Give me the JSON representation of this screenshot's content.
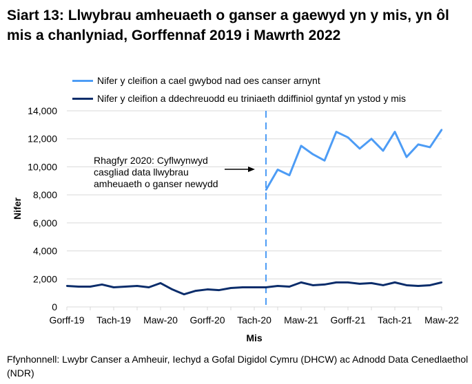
{
  "chart_data": {
    "type": "line",
    "title": "Siart 13: Llwybrau amheuaeth o ganser a gaewyd yn y mis, yn ôl mis a chanlyniad, Gorffennaf 2019 i Mawrth 2022",
    "xlabel": "Mis",
    "ylabel": "Nifer",
    "ylim": [
      0,
      14000
    ],
    "yticks": [
      "0",
      "2,000",
      "4,000",
      "6,000",
      "8,000",
      "10,000",
      "12,000",
      "14,000"
    ],
    "xtick_labels": [
      "Gorff-19",
      "Tach-19",
      "Maw-20",
      "Gorff-20",
      "Tach-20",
      "Maw-21",
      "Gorff-21",
      "Tach-21",
      "Maw-22"
    ],
    "n_months": 33,
    "legend_position": "top",
    "series": [
      {
        "name": "Nifer y cleifion a cael gwybod nad oes canser arnynt",
        "color": "#4d9cf5",
        "start_index": 17,
        "values": [
          8350,
          9800,
          9400,
          11500,
          10900,
          10450,
          12500,
          12100,
          11300,
          12000,
          11150,
          12500,
          10700,
          11600,
          11400,
          12650
        ]
      },
      {
        "name": "Nifer y cleifion a ddechreuodd eu triniaeth ddiffiniol gyntaf yn ystod y mis",
        "color": "#0b2d6b",
        "start_index": 0,
        "values": [
          1500,
          1450,
          1450,
          1600,
          1400,
          1450,
          1500,
          1400,
          1700,
          1250,
          900,
          1150,
          1250,
          1200,
          1350,
          1400,
          1400,
          1400,
          1500,
          1450,
          1750,
          1550,
          1600,
          1750,
          1750,
          1650,
          1700,
          1550,
          1750,
          1550,
          1500,
          1550,
          1750
        ]
      }
    ],
    "annotation": {
      "text_lines": [
        "Rhagfyr 2020: Cyflwynwyd",
        "casgliad data llwybrau",
        "amheuaeth o ganser newydd"
      ],
      "at_index": 17
    }
  },
  "source": "Ffynhonnell: Lwybr Canser a Amheuir, Iechyd a Gofal Digidol Cymru (DHCW) ac Adnodd Data Cenedlaethol (NDR)"
}
